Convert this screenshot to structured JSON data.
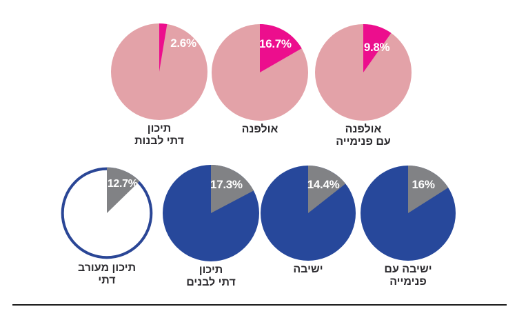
{
  "page": {
    "background": "#ffffff",
    "text_color": "#2b2a2e"
  },
  "chart_data": {
    "type": "pie",
    "unit": "%",
    "layout": "two rows of pie charts, slices start at 12 o'clock going clockwise, legend-free, RTL Hebrew category labels below each pie",
    "groups": [
      {
        "name": "top-row-girls-schools",
        "base_color": "#e3a2a8",
        "slice_color": "#ec0e8d"
      },
      {
        "name": "bottom-row-boys-schools",
        "base_color": "#27489b",
        "slice_color": "#818285"
      }
    ],
    "pies": [
      {
        "label": "תיכון דתי לבנות",
        "label_lines": {
          "0": "תיכון",
          "1": "דתי לבנות"
        },
        "value": 2.6,
        "value_label": "2.6%",
        "base_color": "#e3a2a8",
        "slice_color": "#ec0e8d"
      },
      {
        "label": "אולפנה",
        "label_lines": {
          "0": "אולפנה"
        },
        "value": 16.7,
        "value_label": "16.7%",
        "base_color": "#e3a2a8",
        "slice_color": "#ec0e8d"
      },
      {
        "label": "אולפנה עם פנימייה",
        "label_lines": {
          "0": "אולפנה",
          "1": "עם פנימייה"
        },
        "value": 9.8,
        "value_label": "9.8%",
        "base_color": "#e3a2a8",
        "slice_color": "#ec0e8d"
      },
      {
        "label": "תיכון מעורב דתי",
        "label_lines": {
          "0": "תיכון מעורב",
          "1": "דתי"
        },
        "value": 12.7,
        "value_label": "12.7%",
        "base_color": "#ffffff",
        "slice_color": "#818285",
        "outline_color": "#2a4696"
      },
      {
        "label": "תיכון דתי לבנים",
        "label_lines": {
          "0": "תיכון",
          "1": "דתי לבנים"
        },
        "value": 17.3,
        "value_label": "17.3%",
        "base_color": "#27489b",
        "slice_color": "#818285"
      },
      {
        "label": "ישיבה",
        "label_lines": {
          "0": "ישיבה"
        },
        "value": 14.4,
        "value_label": "14.4%",
        "base_color": "#27489b",
        "slice_color": "#818285"
      },
      {
        "label": "ישיבה עם פנימייה",
        "label_lines": {
          "0": "ישיבה עם",
          "1": "פנימייה"
        },
        "value": 16,
        "value_label": "16%",
        "base_color": "#27489b",
        "slice_color": "#818285"
      }
    ]
  },
  "footer": {
    "divider_color": "#1b1b1b"
  }
}
